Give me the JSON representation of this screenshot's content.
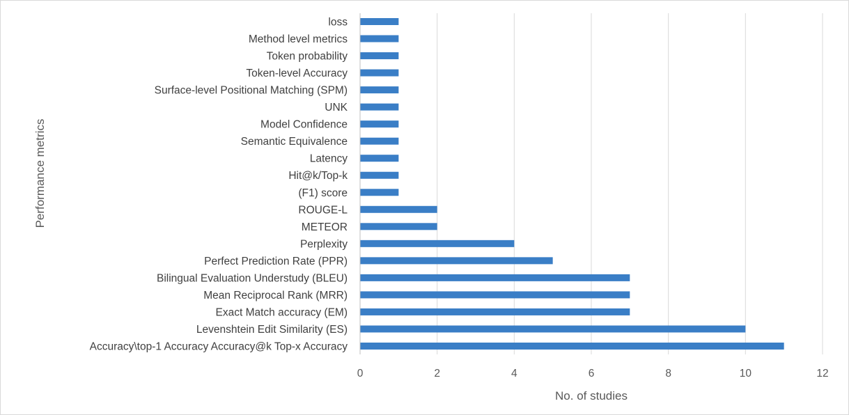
{
  "chart_data": {
    "type": "bar",
    "orientation": "horizontal",
    "categories": [
      "loss",
      "Method level metrics",
      "Token probability",
      "Token-level Accuracy",
      "Surface-level Positional Matching (SPM)",
      "UNK",
      "Model Confidence",
      "Semantic Equivalence",
      "Latency",
      "Hit@k/Top-k",
      "(F1) score",
      "ROUGE-L",
      "METEOR",
      "Perplexity",
      "Perfect Prediction Rate (PPR)",
      "Bilingual Evaluation Understudy (BLEU)",
      "Mean Reciprocal Rank (MRR)",
      "Exact Match accuracy (EM)",
      "Levenshtein Edit Similarity (ES)",
      "Accuracy\\top-1 Accuracy Accuracy@k Top-x Accuracy"
    ],
    "values": [
      1,
      1,
      1,
      1,
      1,
      1,
      1,
      1,
      1,
      1,
      1,
      2,
      2,
      4,
      5,
      7,
      7,
      7,
      10,
      11
    ],
    "xlabel": "No. of studies",
    "ylabel": "Performance metrics",
    "xlim": [
      0,
      12
    ],
    "xticks": [
      0,
      2,
      4,
      6,
      8,
      10,
      12
    ],
    "grid": "vertical",
    "legend": "none",
    "bar_color": "#3a7ec6"
  }
}
